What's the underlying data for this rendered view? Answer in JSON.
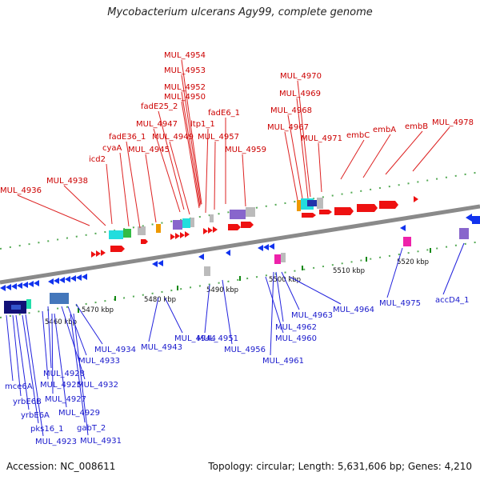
{
  "title": "Mycobacterium ulcerans Agy99, complete genome",
  "footer": {
    "accession": "Accession: NC_008611",
    "summary": "Topology: circular; Length: 5,631,606 bp; Genes: 4,210"
  },
  "colors": {
    "top_label": "#cc0000",
    "bottom_label": "#1a1acc",
    "backbone": "#8a8a8a"
  },
  "ticks": [
    "5460 kbp",
    "5470 kbp",
    "5480 kbp",
    "5490 kbp",
    "5500 kbp",
    "5510 kbp",
    "5520 kbp"
  ],
  "top_labels": [
    "MUL_4954",
    "MUL_4953",
    "MUL_4952",
    "MUL_4950",
    "fadE25_2",
    "MUL_4947",
    "MUL_4949",
    "ltp1_1",
    "fadE6_1",
    "MUL_4957",
    "MUL_4959",
    "fadE36_1",
    "cyaA",
    "MUL_4945",
    "icd2",
    "MUL_4938",
    "MUL_4936",
    "MUL_4970",
    "MUL_4969",
    "MUL_4968",
    "MUL_4967",
    "MUL_4971",
    "embC",
    "embA",
    "embB",
    "MUL_4978"
  ],
  "bottom_labels": [
    "MUL_4934",
    "MUL_4933",
    "MUL_4932",
    "MUL_4928",
    "MUL_4925",
    "MUL_4927",
    "MUL_4929",
    "MUL_4923",
    "MUL_4931",
    "gabT_2",
    "pks16_1",
    "yrbE6A",
    "yrbE6B",
    "mce6A",
    "MUL_4944",
    "MUL_4943",
    "MUL_4951",
    "MUL_4956",
    "MUL_4960",
    "MUL_4961",
    "MUL_4962",
    "MUL_4963",
    "MUL_4964",
    "MUL_4975",
    "accD4_1"
  ]
}
